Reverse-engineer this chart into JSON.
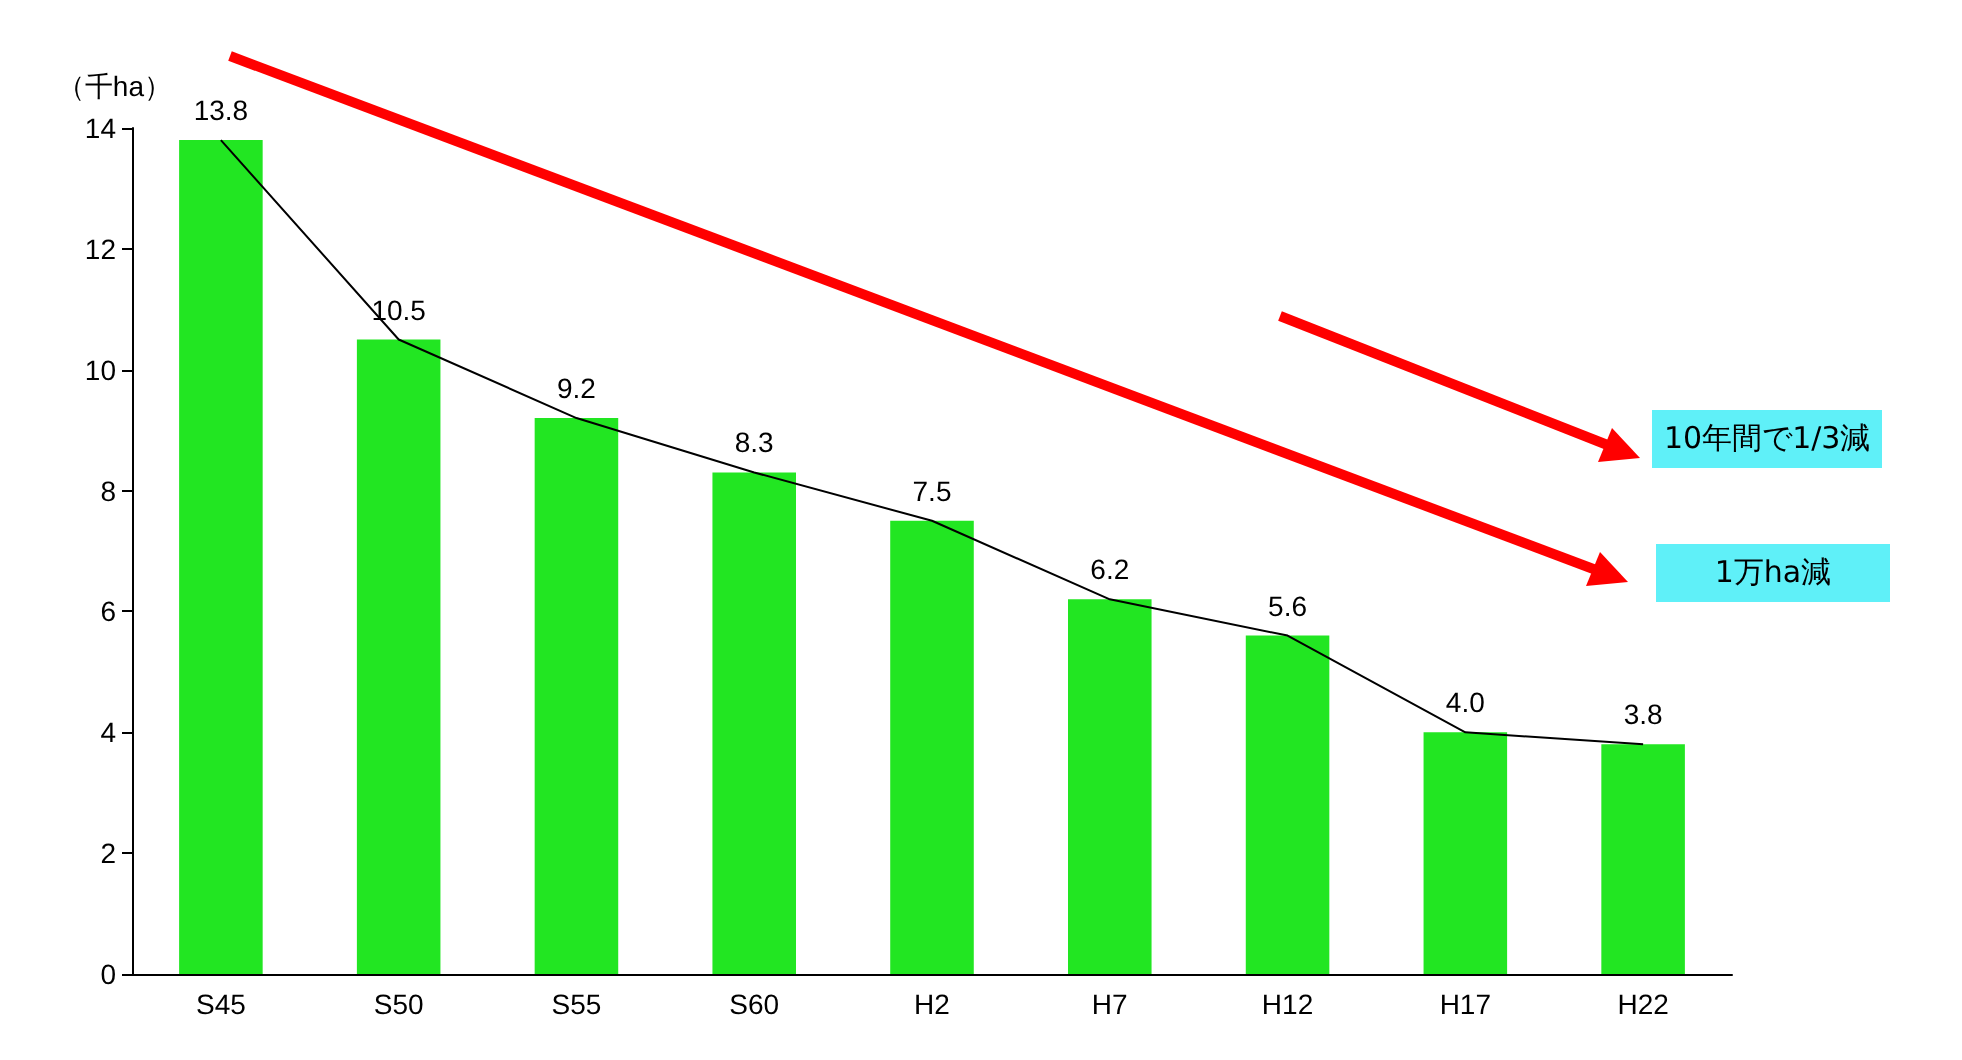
{
  "chart_data": {
    "type": "bar",
    "ylabel": "（千ha）",
    "categories": [
      "S45",
      "S50",
      "S55",
      "S60",
      "H2",
      "H7",
      "H12",
      "H17",
      "H22"
    ],
    "series": [
      {
        "color": "#22e622",
        "values": [
          13.8,
          10.5,
          9.2,
          8.3,
          7.5,
          6.2,
          5.6,
          4.0,
          3.8
        ]
      },
      {
        "type": "line",
        "color": "#000000",
        "marker": "none",
        "values": [
          13.8,
          10.5,
          9.2,
          8.3,
          7.5,
          6.2,
          5.6,
          4.0,
          3.8
        ]
      }
    ],
    "value_labels": [
      "13.8",
      "10.5",
      "9.2",
      "8.3",
      "7.5",
      "6.2",
      "5.6",
      "4.0",
      "3.8"
    ],
    "ylim": [
      0,
      14
    ],
    "yticks": [
      0,
      2,
      4,
      6,
      8,
      10,
      12,
      14
    ],
    "grid": false,
    "annotations": [
      "10年間で1/3減",
      "1万ha減"
    ]
  }
}
